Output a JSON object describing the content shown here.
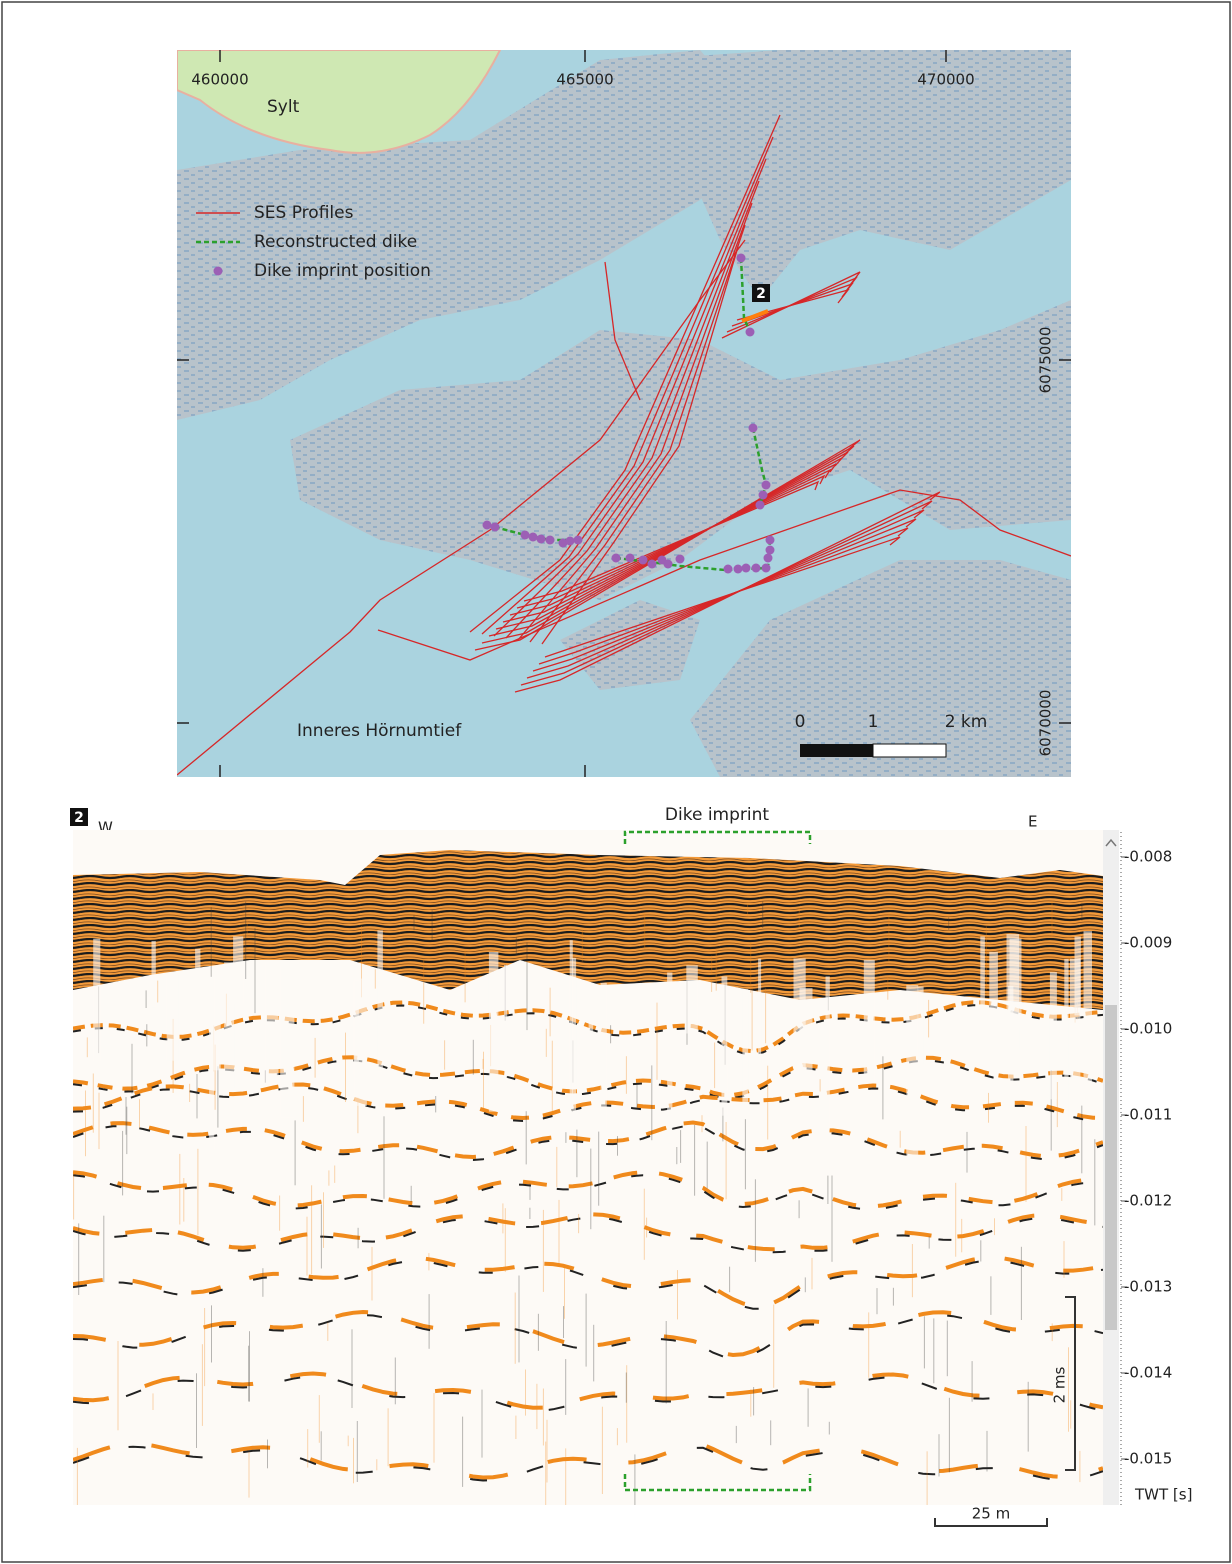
{
  "map": {
    "x_ticks": [
      "460000",
      "465000",
      "470000"
    ],
    "y_ticks": [
      "6075000",
      "6070000"
    ],
    "place_labels": [
      "Sylt",
      "Inneres Hörnumtief"
    ],
    "legend": [
      "SES Profiles",
      "Reconstructed dike",
      "Dike imprint position"
    ],
    "profile_marker": "2",
    "scale_bar": [
      "0",
      "1",
      "2 km"
    ]
  },
  "profile": {
    "marker": "2",
    "west": "W",
    "east": "E",
    "annotation": "Dike imprint",
    "twt_ticks": [
      "-0.008",
      "-0.009",
      "-0.010",
      "-0.011",
      "-0.012",
      "-0.013",
      "-0.014",
      "-0.015"
    ],
    "axis_label": "TWT [s]",
    "vertical_scale": "2 ms",
    "horizontal_scale": "25 m"
  }
}
